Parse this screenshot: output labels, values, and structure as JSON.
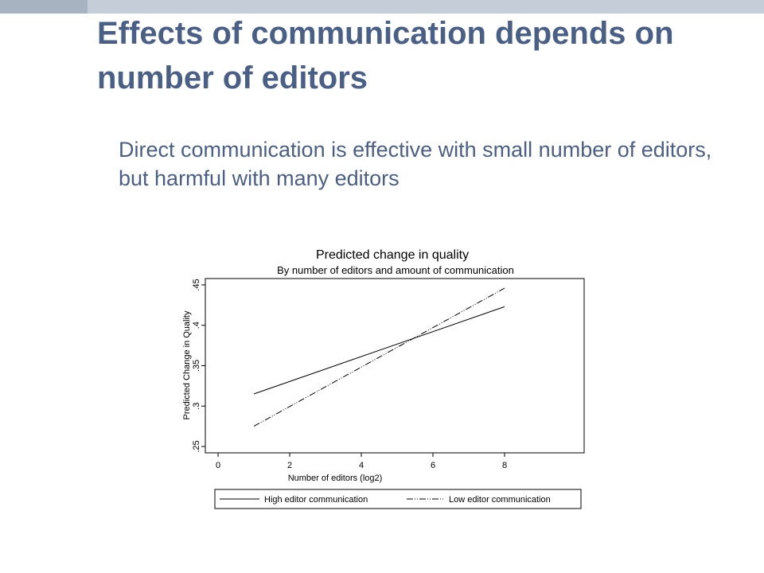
{
  "slide": {
    "title": "Effects of communication depends on number of editors",
    "subtitle": "Direct communication is effective with small number of editors, but harmful with many editors",
    "accent_color": "#4a5f86",
    "topbar_colors": [
      "#a8b3c1",
      "#c5cdd8"
    ]
  },
  "chart_data": {
    "type": "line",
    "title": "Predicted change in quality",
    "subtitle": "By number of editors and amount of communication",
    "xlabel": "Number of editors (log2)",
    "ylabel": "Predicted Change in Quality",
    "xlim": [
      0,
      10
    ],
    "ylim": [
      0.25,
      0.45
    ],
    "xticks": [
      0,
      2,
      4,
      6,
      8
    ],
    "xtick_labels": [
      "0",
      "2",
      "4",
      "6",
      "8"
    ],
    "yticks": [
      0.25,
      0.3,
      0.35,
      0.4,
      0.45
    ],
    "ytick_labels": [
      ".25",
      ".3",
      ".35",
      ".4",
      ".45"
    ],
    "grid": false,
    "legend_position": "bottom",
    "series": [
      {
        "name": "High editor communication",
        "style": "solid",
        "x": [
          1,
          8
        ],
        "y": [
          0.315,
          0.423
        ]
      },
      {
        "name": "Low editor communication",
        "style": "dash-dot",
        "x": [
          1,
          8
        ],
        "y": [
          0.275,
          0.446
        ]
      }
    ]
  }
}
